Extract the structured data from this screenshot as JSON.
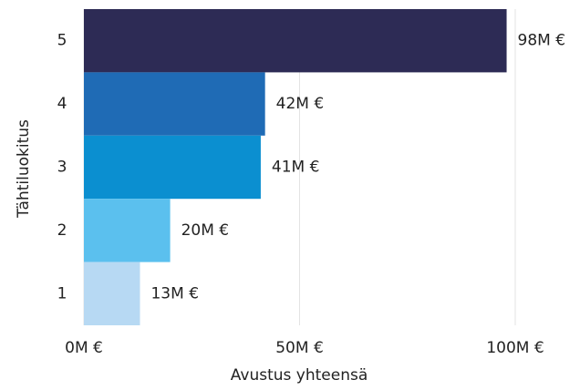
{
  "chart_data": {
    "type": "barh",
    "categories": [
      "5",
      "4",
      "3",
      "2",
      "1"
    ],
    "values": [
      98,
      42,
      41,
      20,
      13
    ],
    "value_labels": [
      "98M €",
      "42M €",
      "41M €",
      "20M €",
      "13M €"
    ],
    "colors": [
      "#2d2b55",
      "#1f6bb5",
      "#0b8fd0",
      "#5bc0ee",
      "#b7d9f3"
    ],
    "xlabel": "Avustus yhteensä",
    "ylabel": "Tähtiluokitus",
    "xlim": [
      0,
      100
    ],
    "xticks": [
      {
        "value": 0,
        "label": "0M €"
      },
      {
        "value": 50,
        "label": "50M €"
      },
      {
        "value": 100,
        "label": "100M €"
      }
    ],
    "grid": true
  }
}
